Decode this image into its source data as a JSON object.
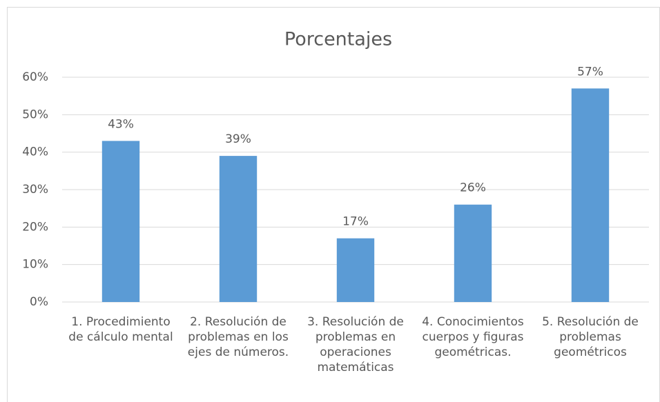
{
  "chart_data": {
    "type": "bar",
    "title": "Porcentajes",
    "categories": [
      "1. Procedimiento de cálculo mental",
      "2. Resolución de problemas en los ejes de números.",
      "3. Resolución de problemas en operaciones matemáticas",
      "4. Conocimientos cuerpos y figuras geométricas.",
      "5. Resolución de problemas geométricos"
    ],
    "values": [
      43,
      39,
      17,
      26,
      57
    ],
    "value_labels": [
      "43%",
      "39%",
      "17%",
      "26%",
      "57%"
    ],
    "color": "#5b9bd5",
    "ylim": [
      0,
      60
    ],
    "yticks": [
      {
        "value": 0,
        "label": "0%"
      },
      {
        "value": 10,
        "label": "10%"
      },
      {
        "value": 20,
        "label": "20%"
      },
      {
        "value": 30,
        "label": "30%"
      },
      {
        "value": 40,
        "label": "40%"
      },
      {
        "value": 50,
        "label": "50%"
      },
      {
        "value": 60,
        "label": "60%"
      }
    ],
    "grid": true
  }
}
